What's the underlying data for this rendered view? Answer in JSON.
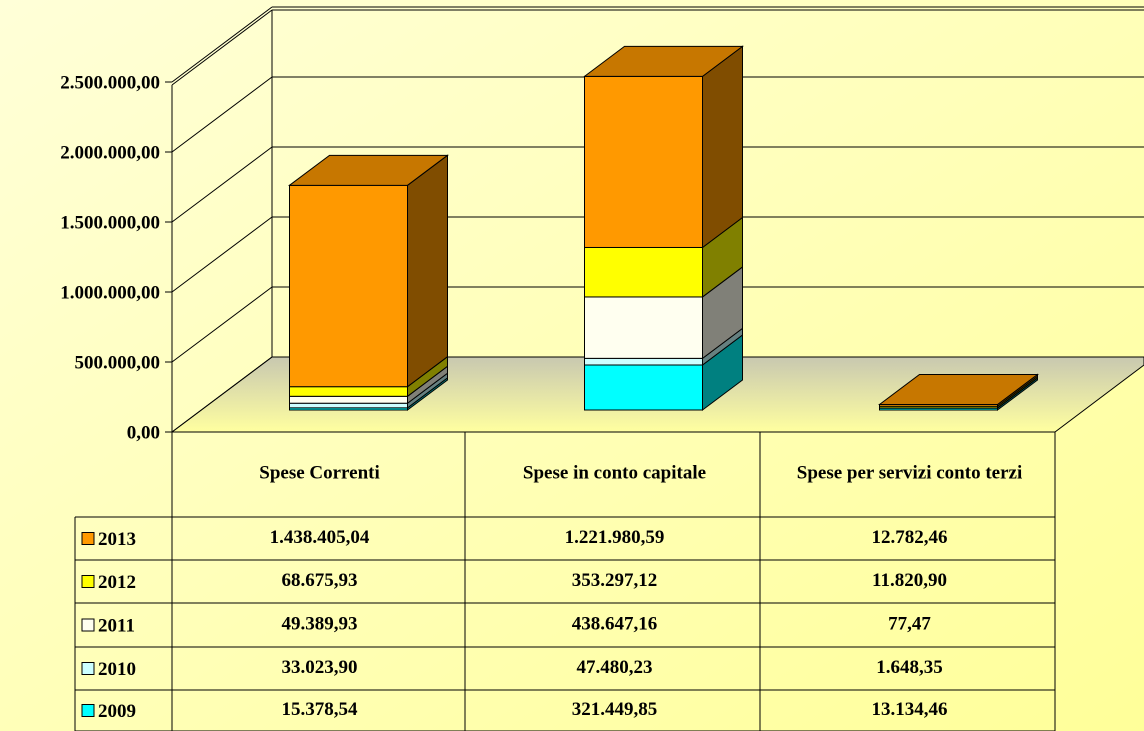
{
  "chart_data": {
    "type": "bar3d_stacked",
    "categories": [
      "Spese Correnti",
      "Spese in conto capitale",
      "Spese per servizi conto terzi"
    ],
    "series": [
      {
        "name": "2013",
        "color": "#ff9900",
        "values": [
          1438405.04,
          1221980.59,
          12782.46
        ],
        "value_labels": [
          "1.438.405,04",
          "1.221.980,59",
          "12.782,46"
        ]
      },
      {
        "name": "2012",
        "color": "#ffff00",
        "values": [
          68675.93,
          353297.12,
          11820.9
        ],
        "value_labels": [
          "68.675,93",
          "353.297,12",
          "11.820,90"
        ]
      },
      {
        "name": "2011",
        "color": "#fffff0",
        "values": [
          49389.93,
          438647.16,
          77.47
        ],
        "value_labels": [
          "49.389,93",
          "438.647,16",
          "77,47"
        ]
      },
      {
        "name": "2010",
        "color": "#ccffff",
        "values": [
          33023.9,
          47480.23,
          1648.35
        ],
        "value_labels": [
          "33.023,90",
          "47.480,23",
          "1.648,35"
        ]
      },
      {
        "name": "2009",
        "color": "#00ffff",
        "values": [
          15378.54,
          321449.85,
          13134.46
        ],
        "value_labels": [
          "15.378,54",
          "321.449,85",
          "13.134,46"
        ]
      }
    ],
    "ylim": [
      0,
      2500000
    ],
    "yticks": [
      {
        "value": 0,
        "label": "0,00"
      },
      {
        "value": 500000,
        "label": "500.000,00"
      },
      {
        "value": 1000000,
        "label": "1.000.000,00"
      },
      {
        "value": 1500000,
        "label": "1.500.000,00"
      },
      {
        "value": 2000000,
        "label": "2.000.000,00"
      },
      {
        "value": 2500000,
        "label": "2.500.000,00"
      }
    ],
    "grid": true
  }
}
